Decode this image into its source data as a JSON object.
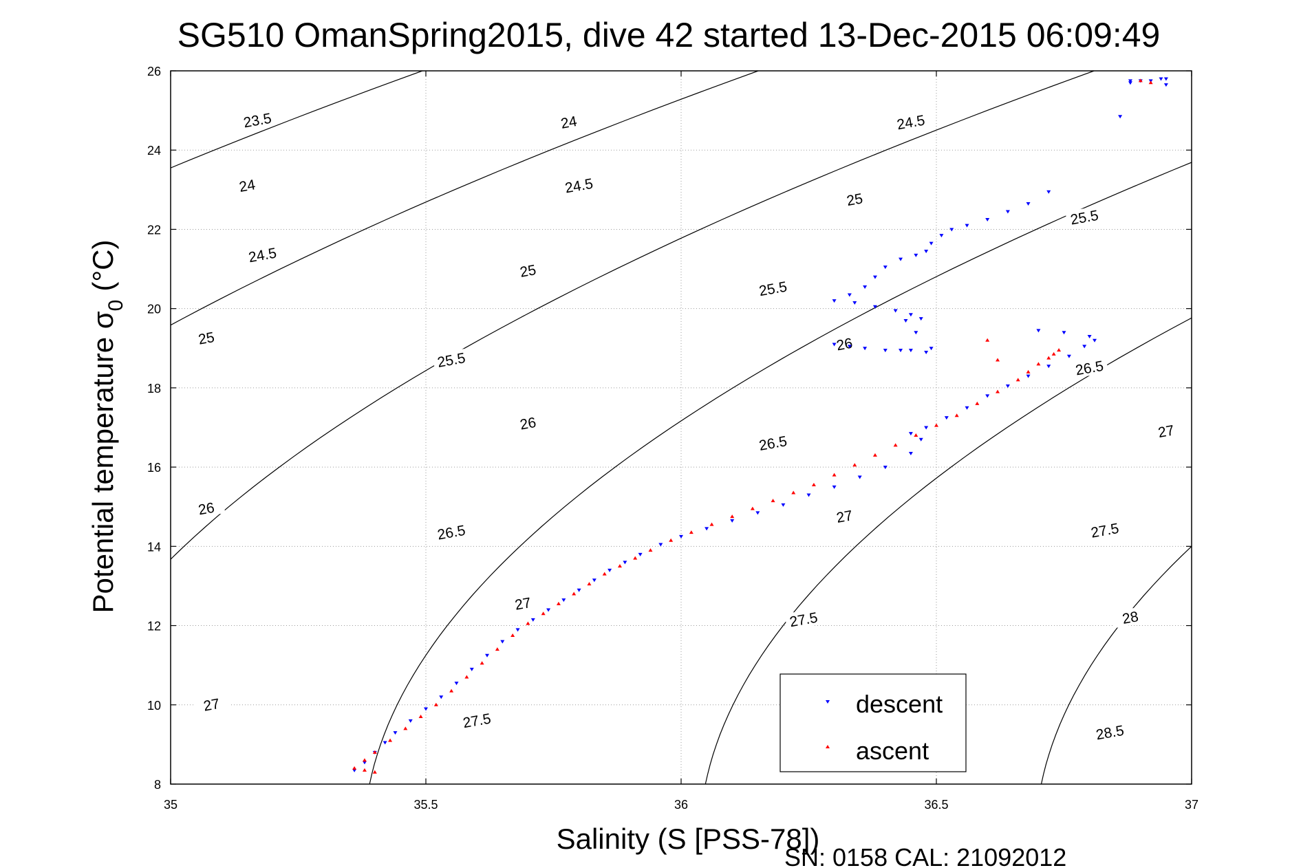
{
  "chart_data": {
    "type": "scatter",
    "title": "SG510 OmanSpring2015, dive 42 started 13-Dec-2015 06:09:49",
    "xlabel": "Salinity (S [PSS-78])",
    "ylabel_main": "Potential temperature σ",
    "ylabel_sub": "0",
    "ylabel_unit": "(°C)",
    "xlim": [
      35,
      37
    ],
    "ylim": [
      8,
      26
    ],
    "xticks": [
      35,
      35.5,
      36,
      36.5,
      37
    ],
    "xtick_labels": [
      "35",
      "35.5",
      "36",
      "36.5",
      "37"
    ],
    "yticks": [
      8,
      10,
      12,
      14,
      16,
      18,
      20,
      22,
      24,
      26
    ],
    "ytick_labels": [
      "8",
      "10",
      "12",
      "14",
      "16",
      "18",
      "20",
      "22",
      "24",
      "26"
    ],
    "grid": true,
    "legend_position": "bottom-right",
    "footer": "SN: 0158  CAL: 21092012",
    "colors": {
      "descent": "#0000ff",
      "ascent": "#ff0000",
      "contour": "#000000"
    },
    "series": [
      {
        "name": "descent",
        "marker": "triangle-down",
        "x": [
          35.36,
          35.38,
          35.4,
          35.42,
          35.44,
          35.47,
          35.5,
          35.53,
          35.56,
          35.59,
          35.62,
          35.65,
          35.68,
          35.71,
          35.74,
          35.77,
          35.8,
          35.83,
          35.86,
          35.89,
          35.92,
          35.96,
          36.0,
          36.05,
          36.1,
          36.15,
          36.2,
          36.25,
          36.3,
          36.35,
          36.4,
          36.45,
          36.47,
          36.45,
          36.48,
          36.52,
          36.56,
          36.6,
          36.64,
          36.68,
          36.72,
          36.76,
          36.79,
          36.81,
          36.8,
          36.75,
          36.7,
          36.3,
          36.33,
          36.36,
          36.4,
          36.43,
          36.45,
          36.48,
          36.49,
          36.46,
          36.44,
          36.45,
          36.47,
          36.42,
          36.38,
          36.34,
          36.3,
          36.33,
          36.36,
          36.38,
          36.4,
          36.43,
          36.46,
          36.48,
          36.49,
          36.51,
          36.53,
          36.56,
          36.6,
          36.64,
          36.68,
          36.72,
          36.86,
          36.88,
          36.9,
          36.92,
          36.94,
          36.95,
          36.95,
          36.88
        ],
        "y": [
          8.35,
          8.55,
          8.8,
          9.05,
          9.3,
          9.6,
          9.9,
          10.2,
          10.55,
          10.9,
          11.25,
          11.6,
          11.9,
          12.15,
          12.4,
          12.65,
          12.9,
          13.15,
          13.4,
          13.6,
          13.8,
          14.05,
          14.25,
          14.45,
          14.65,
          14.85,
          15.05,
          15.3,
          15.5,
          15.75,
          16.0,
          16.35,
          16.7,
          16.85,
          17.0,
          17.25,
          17.5,
          17.8,
          18.05,
          18.3,
          18.55,
          18.8,
          19.05,
          19.2,
          19.3,
          19.4,
          19.45,
          19.1,
          19.05,
          19.0,
          18.95,
          18.95,
          18.95,
          18.9,
          19.0,
          19.4,
          19.7,
          19.85,
          19.75,
          19.95,
          20.05,
          20.15,
          20.2,
          20.35,
          20.55,
          20.8,
          21.05,
          21.25,
          21.35,
          21.45,
          21.65,
          21.85,
          22.0,
          22.1,
          22.25,
          22.45,
          22.65,
          22.95,
          24.85,
          25.7,
          25.75,
          25.75,
          25.8,
          25.8,
          25.65,
          25.75
        ]
      },
      {
        "name": "ascent",
        "marker": "triangle-up",
        "x": [
          35.36,
          35.38,
          35.4,
          35.43,
          35.46,
          35.49,
          35.52,
          35.55,
          35.58,
          35.61,
          35.64,
          35.67,
          35.7,
          35.73,
          35.76,
          35.79,
          35.82,
          35.85,
          35.88,
          35.91,
          35.94,
          35.98,
          36.02,
          36.06,
          36.1,
          36.14,
          36.18,
          36.22,
          36.26,
          36.3,
          36.34,
          36.38,
          36.42,
          36.46,
          36.5,
          36.54,
          36.58,
          36.62,
          36.66,
          36.68,
          36.7,
          36.72,
          36.73,
          36.74,
          36.6,
          36.62,
          35.38,
          35.4,
          36.9,
          36.92
        ],
        "y": [
          8.4,
          8.6,
          8.8,
          9.1,
          9.4,
          9.7,
          10.0,
          10.35,
          10.7,
          11.05,
          11.4,
          11.75,
          12.05,
          12.3,
          12.55,
          12.8,
          13.05,
          13.3,
          13.5,
          13.7,
          13.9,
          14.15,
          14.35,
          14.55,
          14.75,
          14.95,
          15.15,
          15.35,
          15.55,
          15.8,
          16.05,
          16.3,
          16.55,
          16.8,
          17.05,
          17.3,
          17.6,
          17.9,
          18.2,
          18.4,
          18.6,
          18.75,
          18.85,
          18.95,
          19.2,
          18.7,
          8.35,
          8.3,
          25.75,
          25.7
        ]
      }
    ],
    "contours": [
      {
        "level": 23.5,
        "label": "23.5"
      },
      {
        "level": 24,
        "label": "24"
      },
      {
        "level": 24.5,
        "label": "24.5"
      },
      {
        "level": 25,
        "label": "25"
      },
      {
        "level": 25.5,
        "label": "25.5"
      },
      {
        "level": 26,
        "label": "26"
      },
      {
        "level": 26.5,
        "label": "26.5"
      },
      {
        "level": 27,
        "label": "27"
      },
      {
        "level": 27.5,
        "label": "27.5"
      },
      {
        "level": 28,
        "label": "28"
      },
      {
        "level": 28.5,
        "label": "28.5"
      }
    ],
    "contour_labels": [
      {
        "label": "23.5",
        "x": 35.17,
        "y": 24.75
      },
      {
        "label": "24",
        "x": 35.78,
        "y": 24.7
      },
      {
        "label": "24.5",
        "x": 36.45,
        "y": 24.7
      },
      {
        "label": "24",
        "x": 35.15,
        "y": 23.1
      },
      {
        "label": "24.5",
        "x": 35.8,
        "y": 23.1
      },
      {
        "label": "25",
        "x": 36.34,
        "y": 22.75
      },
      {
        "label": "25.5",
        "x": 36.79,
        "y": 22.3
      },
      {
        "label": "24.5",
        "x": 35.18,
        "y": 21.35
      },
      {
        "label": "25",
        "x": 35.7,
        "y": 20.95
      },
      {
        "label": "25.5",
        "x": 36.18,
        "y": 20.5
      },
      {
        "label": "25",
        "x": 35.07,
        "y": 19.25
      },
      {
        "label": "26",
        "x": 36.32,
        "y": 19.1
      },
      {
        "label": "25.5",
        "x": 35.55,
        "y": 18.7
      },
      {
        "label": "26.5",
        "x": 36.8,
        "y": 18.5
      },
      {
        "label": "26",
        "x": 35.7,
        "y": 17.1
      },
      {
        "label": "26.5",
        "x": 36.18,
        "y": 16.6
      },
      {
        "label": "27",
        "x": 36.95,
        "y": 16.9
      },
      {
        "label": "26",
        "x": 35.07,
        "y": 14.95
      },
      {
        "label": "27",
        "x": 36.32,
        "y": 14.75
      },
      {
        "label": "26.5",
        "x": 35.55,
        "y": 14.35
      },
      {
        "label": "27.5",
        "x": 36.83,
        "y": 14.4
      },
      {
        "label": "27",
        "x": 35.69,
        "y": 12.55
      },
      {
        "label": "27.5",
        "x": 36.24,
        "y": 12.15
      },
      {
        "label": "28",
        "x": 36.88,
        "y": 12.2
      },
      {
        "label": "27",
        "x": 35.08,
        "y": 10.0
      },
      {
        "label": "27.5",
        "x": 35.6,
        "y": 9.6
      },
      {
        "label": "28.5",
        "x": 36.84,
        "y": 9.3
      }
    ]
  }
}
